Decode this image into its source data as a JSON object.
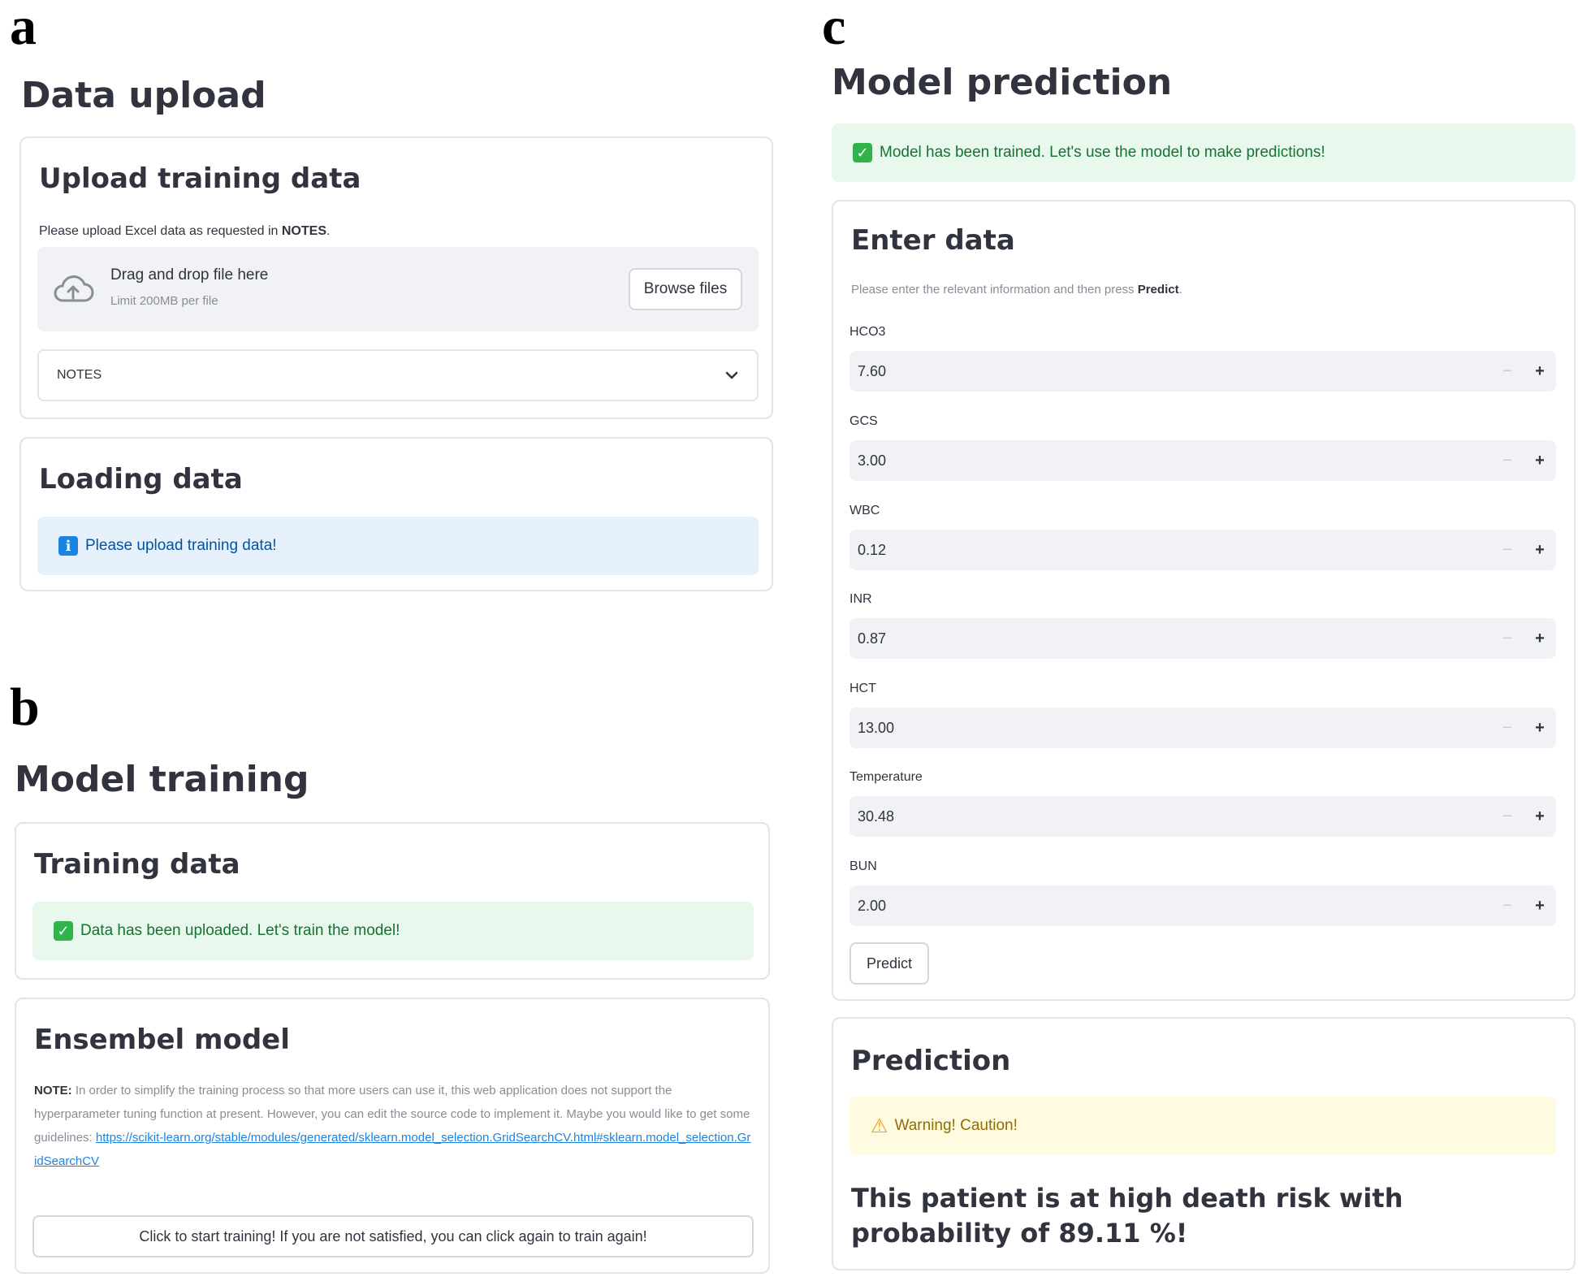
{
  "panels": {
    "a": {
      "letter": "a",
      "title": "Data upload",
      "upload_card": {
        "heading": "Upload training data",
        "caption_prefix": "Please upload Excel data as requested in ",
        "caption_bold": "NOTES",
        "caption_suffix": ".",
        "dropzone": {
          "title": "Drag and drop file here",
          "limit": "Limit 200MB per file",
          "icon": "cloud-upload-icon",
          "browse_label": "Browse files"
        },
        "expander_label": "NOTES"
      },
      "loading_card": {
        "heading": "Loading data",
        "info_text": "Please upload training data!"
      }
    },
    "b": {
      "letter": "b",
      "title": "Model training",
      "training_card": {
        "heading": "Training data",
        "success_text": "Data has been uploaded. Let's train the model!"
      },
      "ensemble_card": {
        "heading": "Ensembel model",
        "note_label": "NOTE:",
        "note_text": " In order to simplify the training process so that more users can use it, this web application does not support the hyperparameter tuning function at present. However, you can edit the source code to implement it. Maybe you would like to get some guidelines: ",
        "note_link": "https://scikit-learn.org/stable/modules/generated/sklearn.model_selection.GridSearchCV.html#sklearn.model_selection.GridSearchCV",
        "train_button": "Click to start training! If you are not satisfied, you can click again to train again!"
      }
    },
    "c": {
      "letter": "c",
      "title": "Model prediction",
      "success_text": "Model has been trained. Let's use the model to make predictions!",
      "enter_card": {
        "heading": "Enter data",
        "caption_prefix": "Please enter the relevant information and then press ",
        "caption_bold": "Predict",
        "caption_suffix": ".",
        "fields": [
          {
            "label": "HCO3",
            "value": "7.60"
          },
          {
            "label": "GCS",
            "value": "3.00"
          },
          {
            "label": "WBC",
            "value": "0.12"
          },
          {
            "label": "INR",
            "value": "0.87"
          },
          {
            "label": "HCT",
            "value": "13.00"
          },
          {
            "label": "Temperature",
            "value": "30.48"
          },
          {
            "label": "BUN",
            "value": "2.00"
          }
        ],
        "minus_symbol": "−",
        "plus_symbol": "+",
        "predict_button": "Predict"
      },
      "prediction_card": {
        "heading": "Prediction",
        "warning_text": "Warning! Caution!",
        "result_text": "This patient is at high death risk with probability of 89.11 %!"
      }
    }
  },
  "colors": {
    "success_bg": "#e8f8ec",
    "info_bg": "#e6f1fc",
    "warning_bg": "#fffbe0",
    "input_bg": "#f0f2f6"
  }
}
